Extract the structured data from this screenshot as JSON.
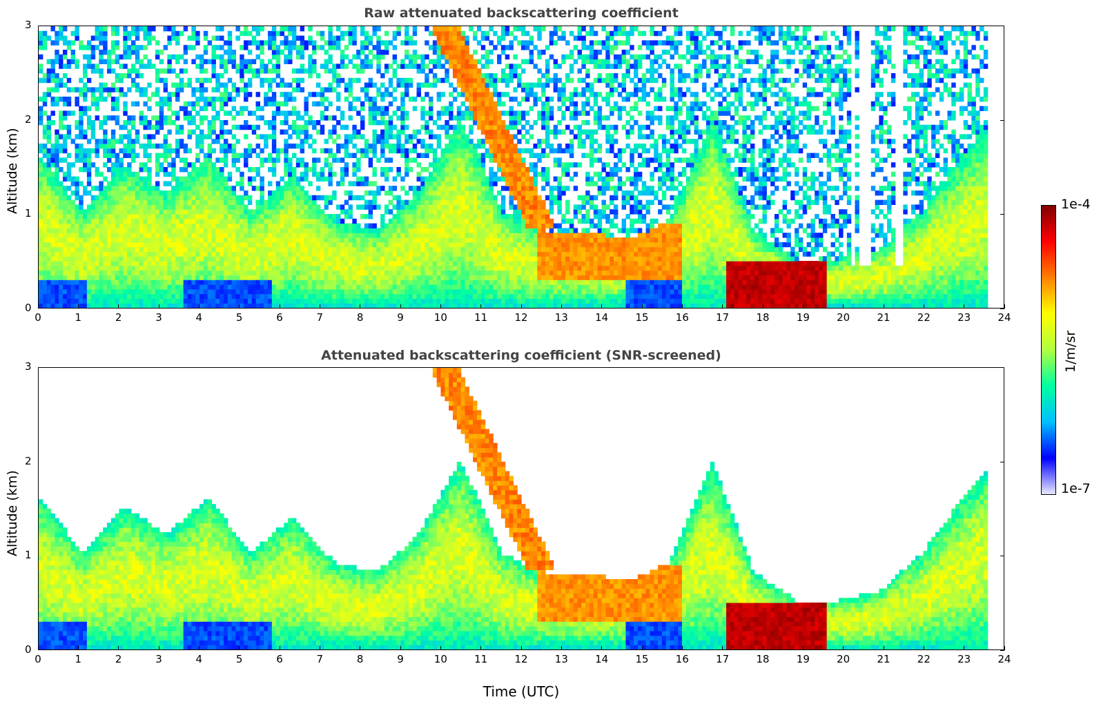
{
  "chart_data": [
    {
      "type": "heatmap",
      "title": "Raw attenuated backscattering coefficient",
      "xlabel": "",
      "ylabel": "Altitude (km)",
      "xlim": [
        0,
        24
      ],
      "ylim": [
        0,
        3
      ],
      "x_ticks": [
        "0",
        "1",
        "2",
        "3",
        "4",
        "5",
        "6",
        "7",
        "8",
        "9",
        "10",
        "11",
        "12",
        "13",
        "14",
        "15",
        "16",
        "17",
        "18",
        "19",
        "20",
        "21",
        "22",
        "23",
        "24"
      ],
      "y_ticks": [
        "0",
        "1",
        "2",
        "3"
      ],
      "data_end_time": 23.6,
      "screened": false,
      "features": [
        {
          "name": "boundary layer",
          "time": [
            0,
            23.6
          ],
          "top_km_approx": [
            1.6,
            1.0,
            1.5,
            1.2,
            1.6,
            1.0,
            1.4,
            0.9,
            0.8,
            1.2,
            2.0,
            1.0,
            0.8,
            0.8,
            0.7,
            0.9,
            2.0,
            0.8,
            0.5,
            0.5,
            0.6,
            1.0,
            1.6,
            2.1
          ]
        },
        {
          "name": "descending aerosol layer",
          "time_start": 10.0,
          "altitude_start_km": 3.0,
          "time_end": 12.5,
          "altitude_end_km": 0.8
        },
        {
          "name": "strong near-surface backscatter",
          "time": [
            17,
            19.5
          ],
          "altitude_km": [
            0,
            0.5
          ]
        },
        {
          "name": "data gaps",
          "times": [
            20.2,
            20.45,
            20.6,
            21.3,
            21.4
          ]
        }
      ]
    },
    {
      "type": "heatmap",
      "title": "Attenuated backscattering coefficient (SNR-screened)",
      "xlabel": "Time (UTC)",
      "ylabel": "Altitude (km)",
      "xlim": [
        0,
        24
      ],
      "ylim": [
        0,
        3
      ],
      "x_ticks": [
        "0",
        "1",
        "2",
        "3",
        "4",
        "5",
        "6",
        "7",
        "8",
        "9",
        "10",
        "11",
        "12",
        "13",
        "14",
        "15",
        "16",
        "17",
        "18",
        "19",
        "20",
        "21",
        "22",
        "23",
        "24"
      ],
      "y_ticks": [
        "0",
        "1",
        "2",
        "3"
      ],
      "data_end_time": 23.6,
      "screened": true
    }
  ],
  "colorbar": {
    "label": "1/m/sr",
    "max_label": "1e-4",
    "min_label": "1e-7",
    "colormap": "jet",
    "scale": "log",
    "colors": [
      "#e8e8ff",
      "#0000ff",
      "#00bfff",
      "#00ffa0",
      "#b0ff40",
      "#ffff00",
      "#ff8000",
      "#ff0000",
      "#800000"
    ]
  }
}
